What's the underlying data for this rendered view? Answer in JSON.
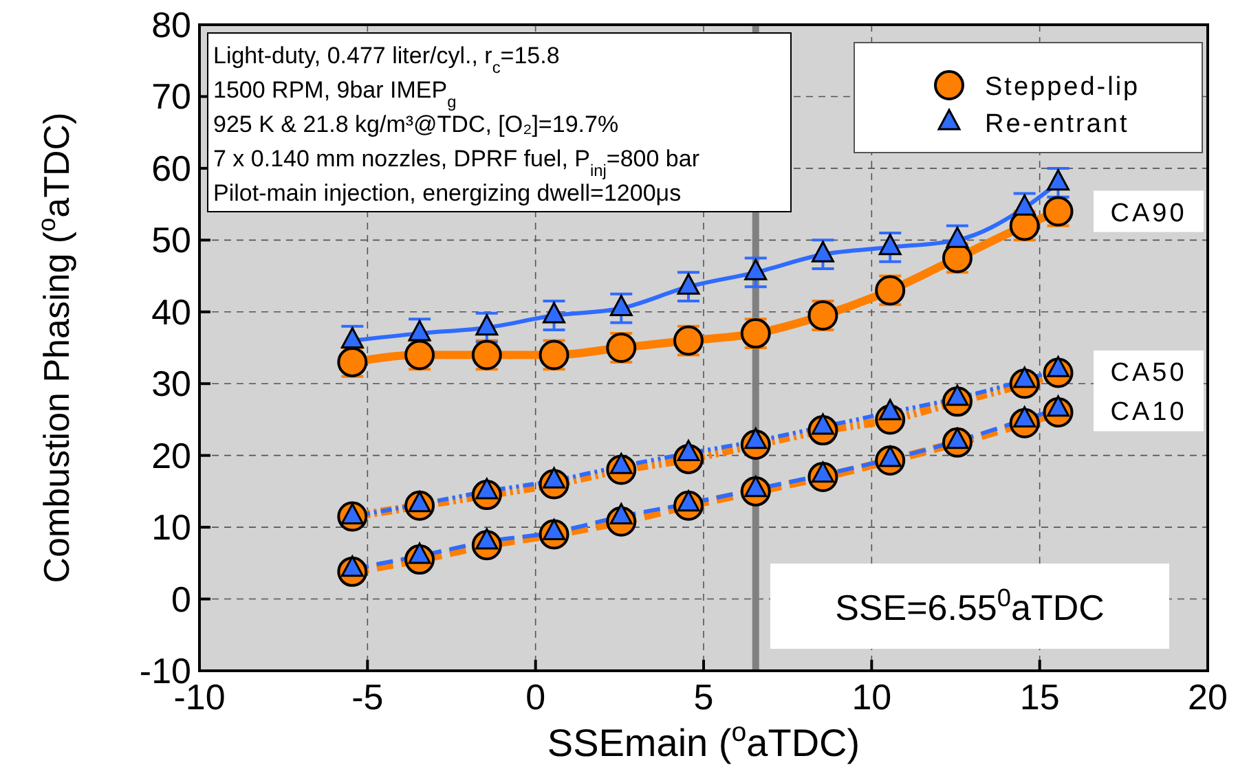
{
  "chart_data": {
    "type": "line",
    "xlabel": "SSEmain ($^{o}$aTDC)",
    "ylabel": "Combustion Phasing ($^{o}$aTDC)",
    "x": [
      -5.45,
      -3.45,
      -1.45,
      0.55,
      2.55,
      4.55,
      6.55,
      8.55,
      10.55,
      12.55,
      14.55,
      15.55
    ],
    "series": [
      {
        "name": "Stepped-lip",
        "color": "#ff7f00",
        "marker": "circle",
        "line_style": "solid",
        "values": [
          33,
          34,
          34,
          34,
          35,
          36,
          37,
          39.5,
          43,
          47.5,
          52,
          54
        ],
        "errors": [
          2,
          2,
          2,
          2,
          2,
          2,
          2,
          2,
          2,
          2,
          2,
          2
        ]
      },
      {
        "name": "Re-entrant",
        "color": "#2f6bff",
        "marker": "triangle",
        "line_style": "solid",
        "values": [
          36,
          37,
          37.8,
          39.5,
          40.5,
          43.5,
          45.5,
          48,
          49,
          50,
          54.5,
          58
        ],
        "errors": [
          2,
          2,
          2,
          2,
          2,
          2,
          2,
          2,
          2,
          2,
          2,
          2
        ]
      },
      {
        "color": "#ff7f00",
        "marker": "circle",
        "line_style": "dashdot",
        "values": [
          11.5,
          13,
          14.5,
          16,
          18,
          19.5,
          21.5,
          23.5,
          25,
          27.5,
          30,
          31.5
        ]
      },
      {
        "color": "#2f6bff",
        "marker": "triangle",
        "line_style": "dashdot",
        "values": [
          11.5,
          13.2,
          15,
          16.5,
          18.5,
          20.3,
          22,
          24,
          26,
          28,
          30.5,
          32
        ]
      },
      {
        "color": "#ff7f00",
        "marker": "circle",
        "line_style": "dashed",
        "values": [
          3.8,
          5.5,
          7.5,
          9,
          10.8,
          13,
          15,
          17,
          19.3,
          21.8,
          24.5,
          26
        ]
      },
      {
        "color": "#2f6bff",
        "marker": "triangle",
        "line_style": "dashed",
        "values": [
          4.2,
          6,
          8,
          9.3,
          11.5,
          13.3,
          15.3,
          17.3,
          19.5,
          22,
          25,
          26.5
        ]
      }
    ],
    "xlim": [
      -10,
      20
    ],
    "xticks": [
      -10,
      -5,
      0,
      5,
      10,
      15,
      20
    ],
    "ylim": [
      -10,
      80
    ],
    "yticks": [
      -10,
      0,
      10,
      20,
      30,
      40,
      50,
      60,
      70,
      80
    ],
    "grid": true,
    "legend": "top right",
    "ref_lines": [
      {
        "axis": "x",
        "value": 6.55,
        "label": "SSE=6.55$^{0}$aTDC",
        "color": "#808080"
      }
    ],
    "annotations": [
      "Light-duty, 0.477 liter/cyl., r$_{c}$=15.8\n1500 RPM, 9bar IMEP$_{g}$\n925 K & 21.8 kg/m³@TDC, [O₂]=19.7%\n7 x 0.140 mm nozzles, DPRF fuel, P$_{inj}$=800 bar\nPilot-main injection, energizing dwell=1200μs",
      "CA90",
      "CA50",
      "CA10"
    ]
  }
}
